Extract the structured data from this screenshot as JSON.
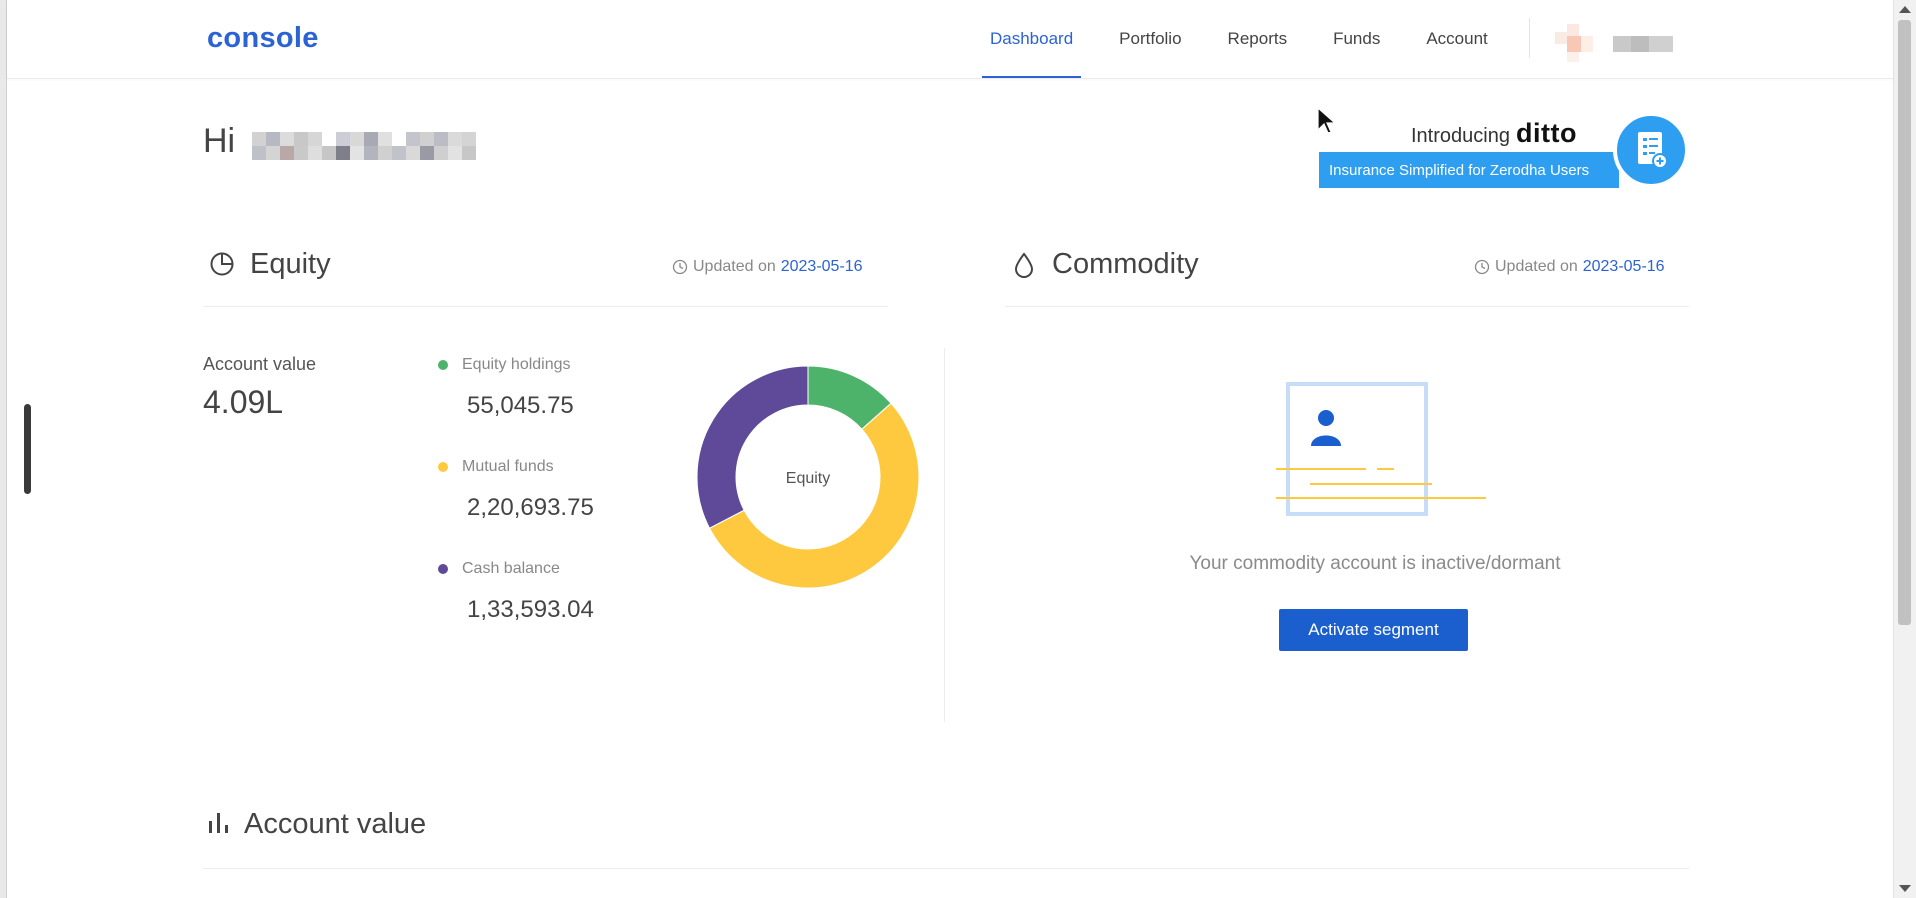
{
  "header": {
    "logo": "console",
    "nav": [
      {
        "label": "Dashboard",
        "active": true
      },
      {
        "label": "Portfolio",
        "active": false
      },
      {
        "label": "Reports",
        "active": false
      },
      {
        "label": "Funds",
        "active": false
      },
      {
        "label": "Account",
        "active": false
      }
    ]
  },
  "greeting": {
    "prefix": "Hi"
  },
  "banner": {
    "intro": "Introducing",
    "brand": "ditto",
    "tagline": "Insurance Simplified for Zerodha Users"
  },
  "equity": {
    "title": "Equity",
    "updated_label": "Updated on",
    "updated_date": "2023-05-16",
    "account_value_label": "Account value",
    "account_value": "4.09L",
    "legend": [
      {
        "label": "Equity holdings",
        "value": "55,045.75",
        "color": "#4db26a"
      },
      {
        "label": "Mutual funds",
        "value": "2,20,693.75",
        "color": "#ffc93f"
      },
      {
        "label": "Cash balance",
        "value": "1,33,593.04",
        "color": "#5e4a98"
      }
    ],
    "donut_center": "Equity"
  },
  "commodity": {
    "title": "Commodity",
    "updated_label": "Updated on",
    "updated_date": "2023-05-16",
    "message": "Your commodity account is inactive/dormant",
    "button_label": "Activate segment"
  },
  "account_value_section": {
    "title": "Account value"
  },
  "chart_data": {
    "type": "pie",
    "categories": [
      "Equity holdings",
      "Mutual funds",
      "Cash balance"
    ],
    "values": [
      55045.75,
      220693.75,
      133593.04
    ],
    "colors": [
      "#4db26a",
      "#ffc93f",
      "#5e4a98"
    ],
    "title": "",
    "center_label": "Equity"
  },
  "colors": {
    "accent": "#2b63d4",
    "banner": "#2e9ef0",
    "button": "#1b5fce"
  }
}
